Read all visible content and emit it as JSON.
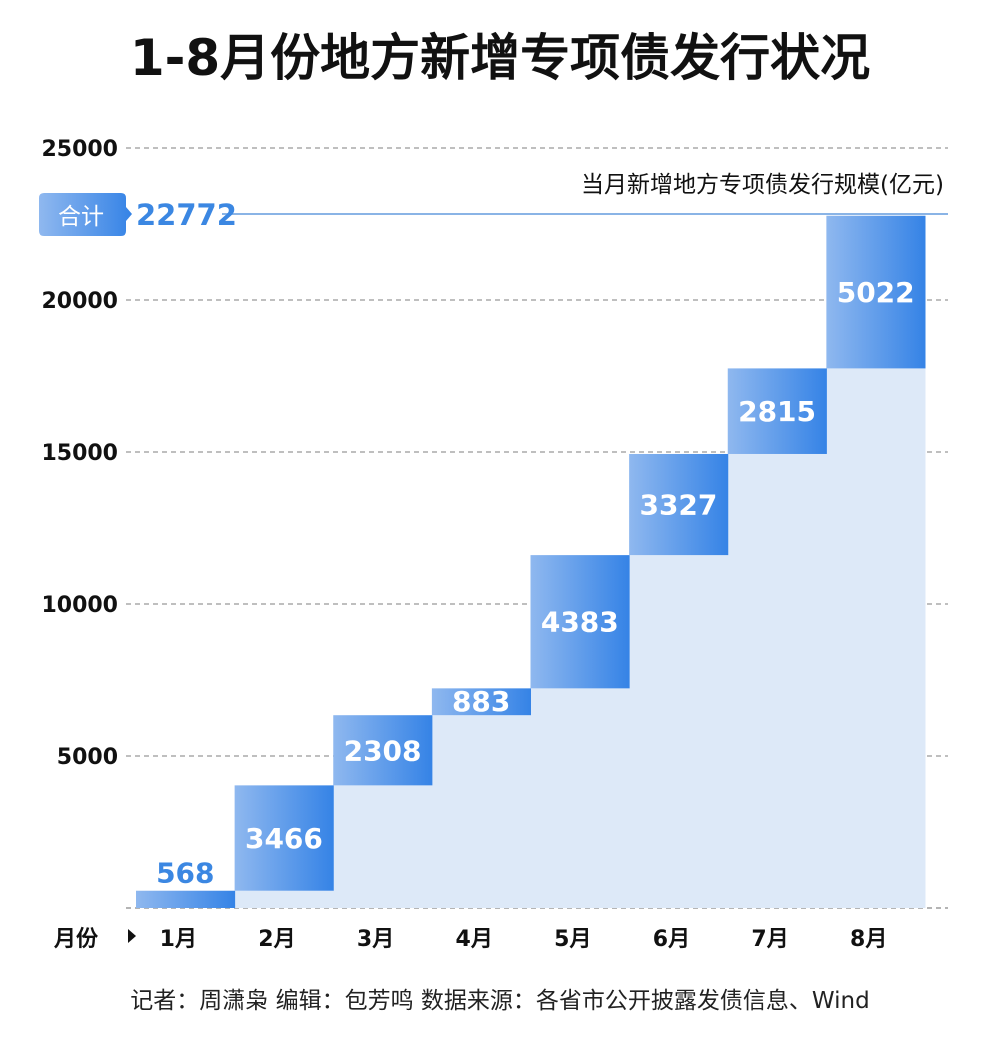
{
  "chart_data": {
    "type": "bar",
    "subtype": "waterfall",
    "title": "1-8月份地方新增专项债发行状况",
    "series_label": "当月新增地方专项债发行规模(亿元)",
    "xlabel": "月份",
    "categories": [
      "1月",
      "2月",
      "3月",
      "4月",
      "5月",
      "6月",
      "7月",
      "8月"
    ],
    "values": [
      568,
      3466,
      2308,
      883,
      4383,
      3327,
      2815,
      5022
    ],
    "total_label": "合计",
    "total": 22772,
    "ylim": [
      0,
      25000
    ],
    "yticks": [
      5000,
      10000,
      15000,
      20000,
      25000
    ],
    "grid": true,
    "colors": {
      "bar_light": "#8fb8ef",
      "bar_dark": "#3583e6",
      "fill": "#dde9f8",
      "total": "#3b87e2"
    }
  },
  "footer": "记者：周潇枭  编辑：包芳鸣   数据来源：各省市公开披露发债信息、Wind"
}
